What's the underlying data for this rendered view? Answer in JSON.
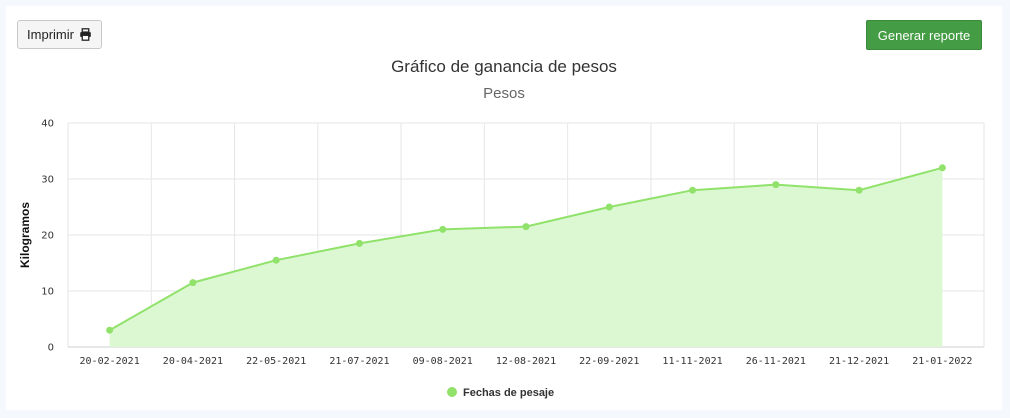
{
  "toolbar": {
    "print_label": "Imprimir",
    "print_icon": "printer-icon",
    "report_label": "Generar reporte"
  },
  "colors": {
    "line": "#90e26b",
    "fill": "#dcf8d3",
    "grid": "#e6e6e6",
    "report_button": "#449d44"
  },
  "chart_data": {
    "type": "area",
    "title": "Gráfico de ganancia de pesos",
    "subtitle": "Pesos",
    "ylabel": "Kilogramos",
    "xlabel": "",
    "ylim": [
      0,
      40
    ],
    "yticks": [
      0,
      10,
      20,
      30,
      40
    ],
    "grid": true,
    "legend_position": "bottom",
    "categories": [
      "20-02-2021",
      "20-04-2021",
      "22-05-2021",
      "21-07-2021",
      "09-08-2021",
      "12-08-2021",
      "22-09-2021",
      "11-11-2021",
      "26-11-2021",
      "21-12-2021",
      "21-01-2022"
    ],
    "series": [
      {
        "name": "Fechas de pesaje",
        "values": [
          3,
          11.5,
          15.5,
          18.5,
          21,
          21.5,
          25,
          28,
          29,
          28,
          32
        ]
      }
    ]
  }
}
